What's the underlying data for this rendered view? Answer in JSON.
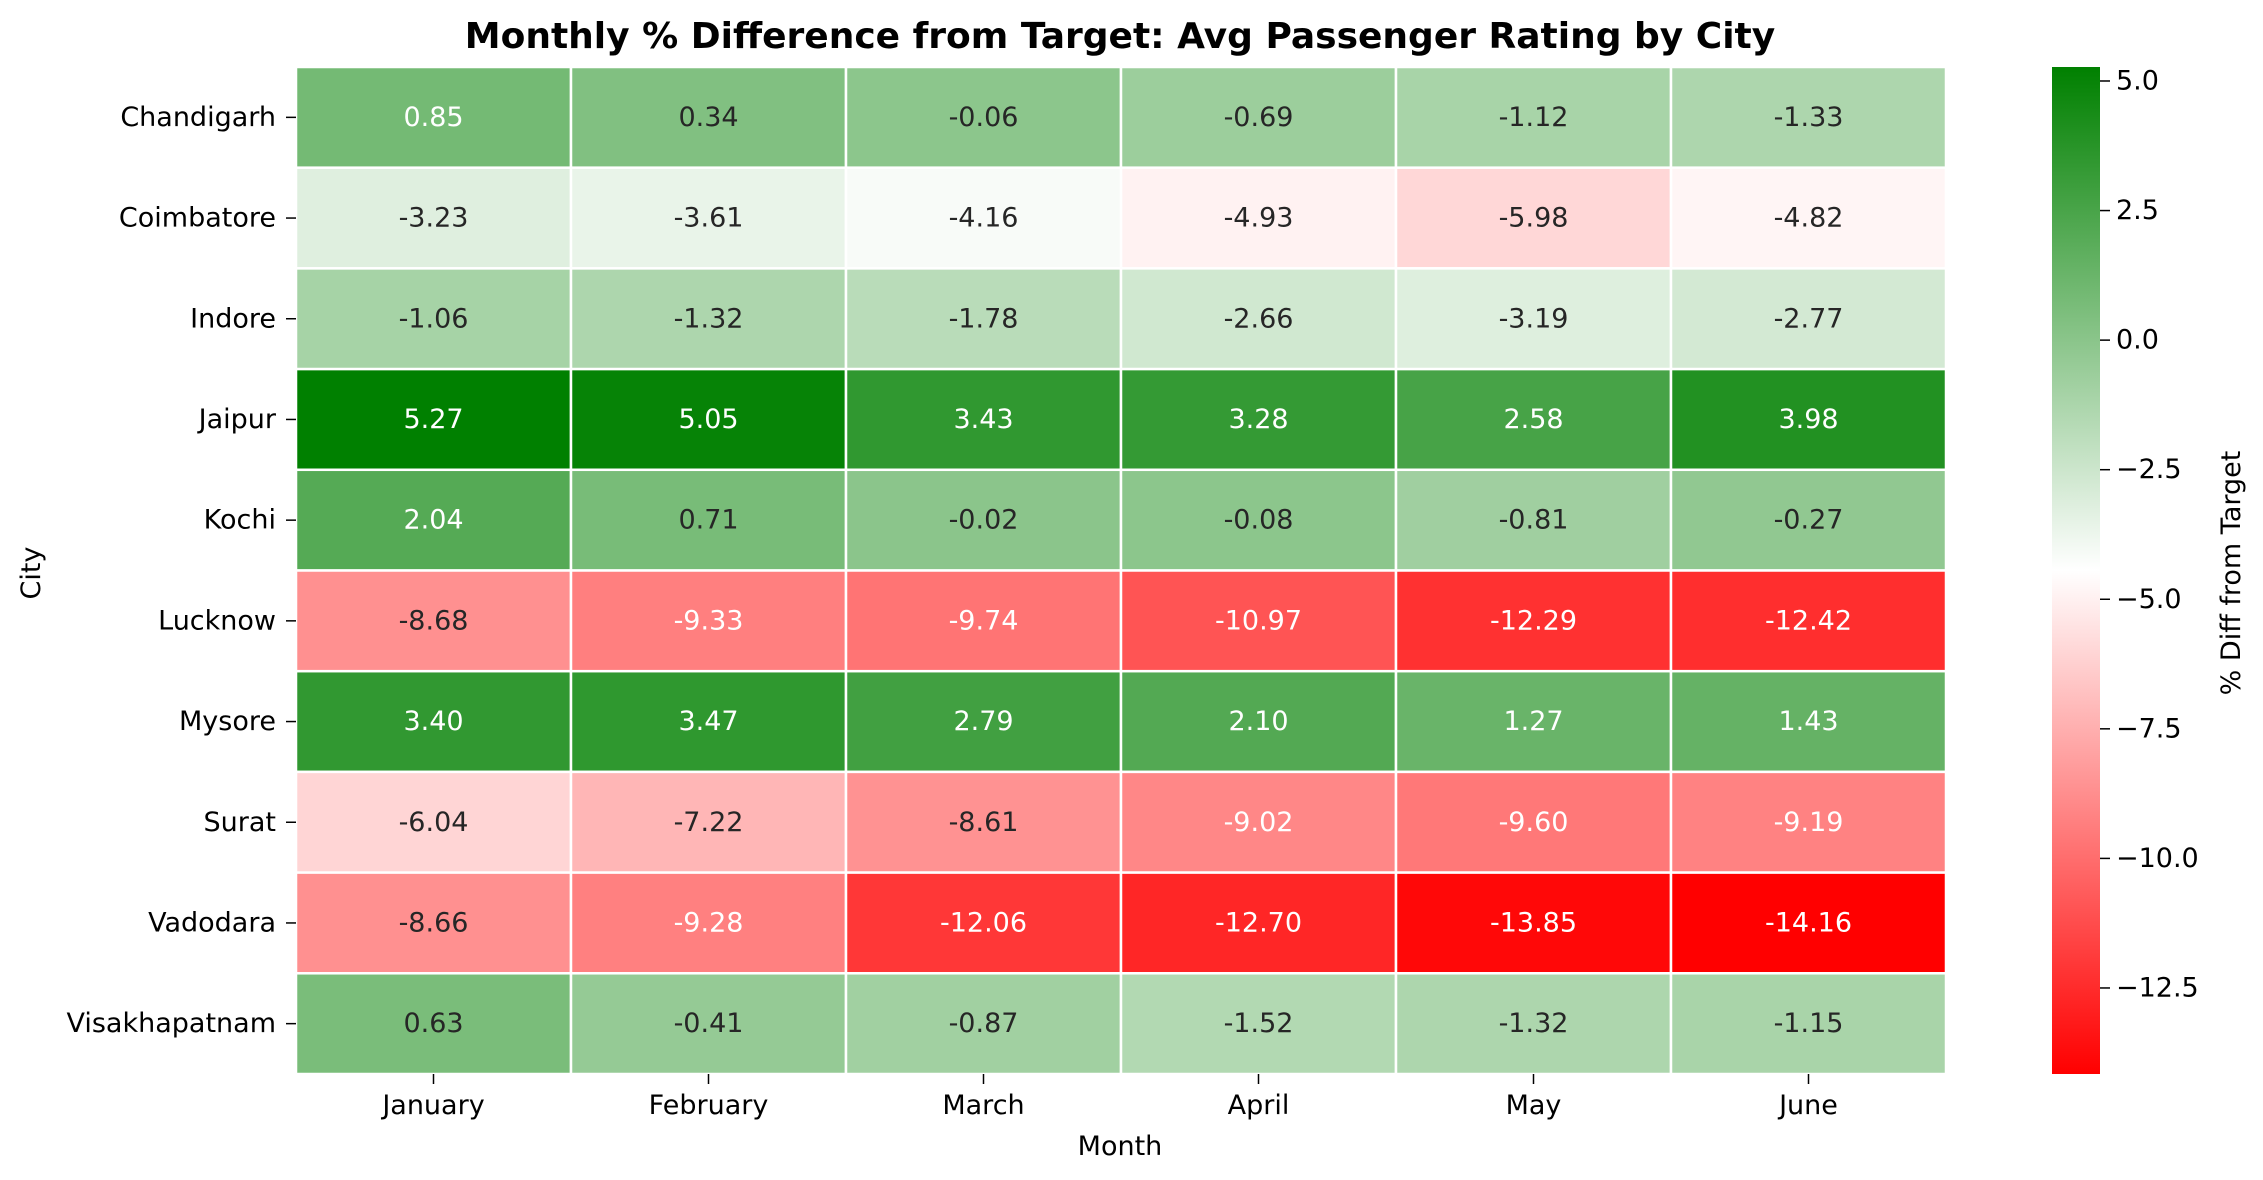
{
  "chart_data": {
    "type": "heatmap",
    "title": "Monthly % Difference from Target: Avg Passenger Rating by City",
    "xlabel": "Month",
    "ylabel": "City",
    "colorbar_label": "% Diff from Target",
    "x_categories": [
      "January",
      "February",
      "March",
      "April",
      "May",
      "June"
    ],
    "y_categories": [
      "Chandigarh",
      "Coimbatore",
      "Indore",
      "Jaipur",
      "Kochi",
      "Lucknow",
      "Mysore",
      "Surat",
      "Vadodara",
      "Visakhapatnam"
    ],
    "values": [
      [
        0.85,
        0.34,
        -0.06,
        -0.69,
        -1.12,
        -1.33
      ],
      [
        -3.23,
        -3.61,
        -4.16,
        -4.93,
        -5.98,
        -4.82
      ],
      [
        -1.06,
        -1.32,
        -1.78,
        -2.66,
        -3.19,
        -2.77
      ],
      [
        5.27,
        5.05,
        3.43,
        3.28,
        2.58,
        3.98
      ],
      [
        2.04,
        0.71,
        -0.02,
        -0.08,
        -0.81,
        -0.27
      ],
      [
        -8.68,
        -9.33,
        -9.74,
        -10.97,
        -12.29,
        -12.42
      ],
      [
        3.4,
        3.47,
        2.79,
        2.1,
        1.27,
        1.43
      ],
      [
        -6.04,
        -7.22,
        -8.61,
        -9.02,
        -9.6,
        -9.19
      ],
      [
        -8.66,
        -9.28,
        -12.06,
        -12.7,
        -13.85,
        -14.16
      ],
      [
        0.63,
        -0.41,
        -0.87,
        -1.52,
        -1.32,
        -1.15
      ]
    ],
    "value_labels": [
      [
        "0.85",
        "0.34",
        "-0.06",
        "-0.69",
        "-1.12",
        "-1.33"
      ],
      [
        "-3.23",
        "-3.61",
        "-4.16",
        "-4.93",
        "-5.98",
        "-4.82"
      ],
      [
        "-1.06",
        "-1.32",
        "-1.78",
        "-2.66",
        "-3.19",
        "-2.77"
      ],
      [
        "5.27",
        "5.05",
        "3.43",
        "3.28",
        "2.58",
        "3.98"
      ],
      [
        "2.04",
        "0.71",
        "-0.02",
        "-0.08",
        "-0.81",
        "-0.27"
      ],
      [
        "-8.68",
        "-9.33",
        "-9.74",
        "-10.97",
        "-12.29",
        "-12.42"
      ],
      [
        "3.40",
        "3.47",
        "2.79",
        "2.10",
        "1.27",
        "1.43"
      ],
      [
        "-6.04",
        "-7.22",
        "-8.61",
        "-9.02",
        "-9.60",
        "-9.19"
      ],
      [
        "-8.66",
        "-9.28",
        "-12.06",
        "-12.70",
        "-13.85",
        "-14.16"
      ],
      [
        "0.63",
        "-0.41",
        "-0.87",
        "-1.52",
        "-1.32",
        "-1.15"
      ]
    ],
    "colorscale": {
      "vmin": -14.16,
      "vmax": 5.27,
      "low_color": "#ff0000",
      "mid_color": "#ffffff",
      "high_color": "#008000",
      "mid_value": -4.445
    },
    "colorbar_ticks": [
      {
        "value": 5.0,
        "label": "5.0"
      },
      {
        "value": 2.5,
        "label": "2.5"
      },
      {
        "value": 0.0,
        "label": "0.0"
      },
      {
        "value": -2.5,
        "label": "−2.5"
      },
      {
        "value": -5.0,
        "label": "−5.0"
      },
      {
        "value": -7.5,
        "label": "−7.5"
      },
      {
        "value": -10.0,
        "label": "−10.0"
      },
      {
        "value": -12.5,
        "label": "−12.5"
      }
    ],
    "grid": false,
    "cell_border_color": "#ffffff",
    "annotation_text_colors": {
      "light": "#ffffff",
      "dark": "#262626"
    }
  }
}
